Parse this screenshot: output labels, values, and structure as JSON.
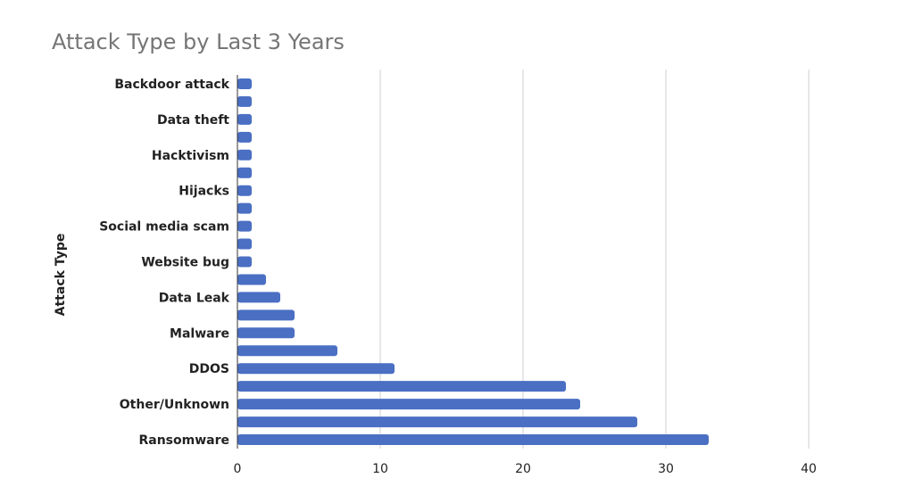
{
  "chart_data": {
    "type": "bar",
    "orientation": "horizontal",
    "title": "Attack Type by Last 3 Years",
    "xlabel": "",
    "ylabel": "Attack Type",
    "xlim": [
      0,
      40
    ],
    "xticks": [
      0,
      10,
      20,
      30,
      40
    ],
    "grid": true,
    "legend": "none",
    "bar_color": "#4a6fc3",
    "categories": [
      "Backdoor attack",
      "",
      "Data theft",
      "",
      "Hacktivism",
      "",
      "Hijacks",
      "",
      "Social media scam",
      "",
      "Website bug",
      "",
      "Data Leak",
      "",
      "Malware",
      "",
      "DDOS",
      "",
      "Other/Unknown",
      "",
      "Ransomware"
    ],
    "values": [
      1,
      1,
      1,
      1,
      1,
      1,
      1,
      1,
      1,
      1,
      1,
      2,
      3,
      4,
      4,
      7,
      11,
      23,
      24,
      28,
      33
    ]
  }
}
